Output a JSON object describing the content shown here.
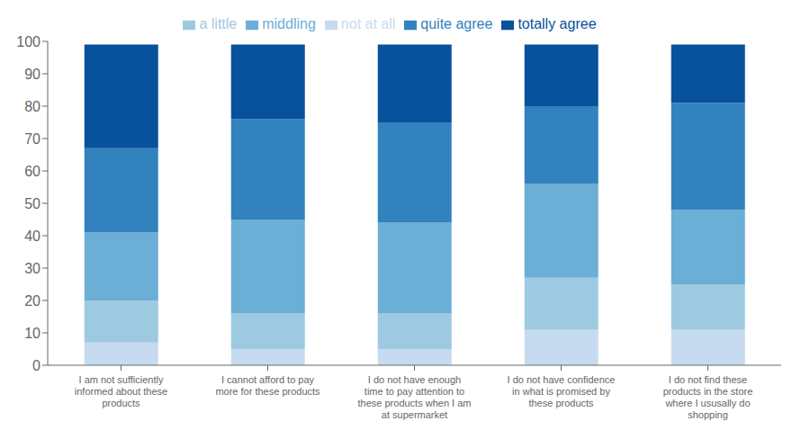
{
  "chart_data": {
    "type": "bar",
    "stacked": true,
    "categories": [
      "I am not sufficiently\ninformed about these\nproducts",
      "I cannot afford to pay\nmore for these products",
      "I do not have enough\ntime to pay attention to\nthese products when I am\nat supermarket",
      "I do not have confidence\nin what is promised by\nthese products",
      "I do not find these\nproducts in the store\nwhere I ususally do\nshopping"
    ],
    "series": [
      {
        "name": "not at all",
        "color": "#c6dbef",
        "values": [
          7,
          5,
          5,
          11,
          11
        ]
      },
      {
        "name": "a little",
        "color": "#9ecae1",
        "values": [
          13,
          11,
          11,
          16,
          14
        ]
      },
      {
        "name": "middling",
        "color": "#6baed6",
        "values": [
          21,
          29,
          28,
          29,
          23
        ]
      },
      {
        "name": "quite agree",
        "color": "#3182bd",
        "values": [
          26,
          31,
          31,
          24,
          33
        ]
      },
      {
        "name": "totally agree",
        "color": "#08519c",
        "values": [
          32,
          23,
          24,
          19,
          18
        ]
      }
    ],
    "ylim": [
      0,
      100
    ],
    "yticks": [
      0,
      10,
      20,
      30,
      40,
      50,
      60,
      70,
      80,
      90,
      100
    ],
    "grid": false,
    "legend": "top"
  }
}
